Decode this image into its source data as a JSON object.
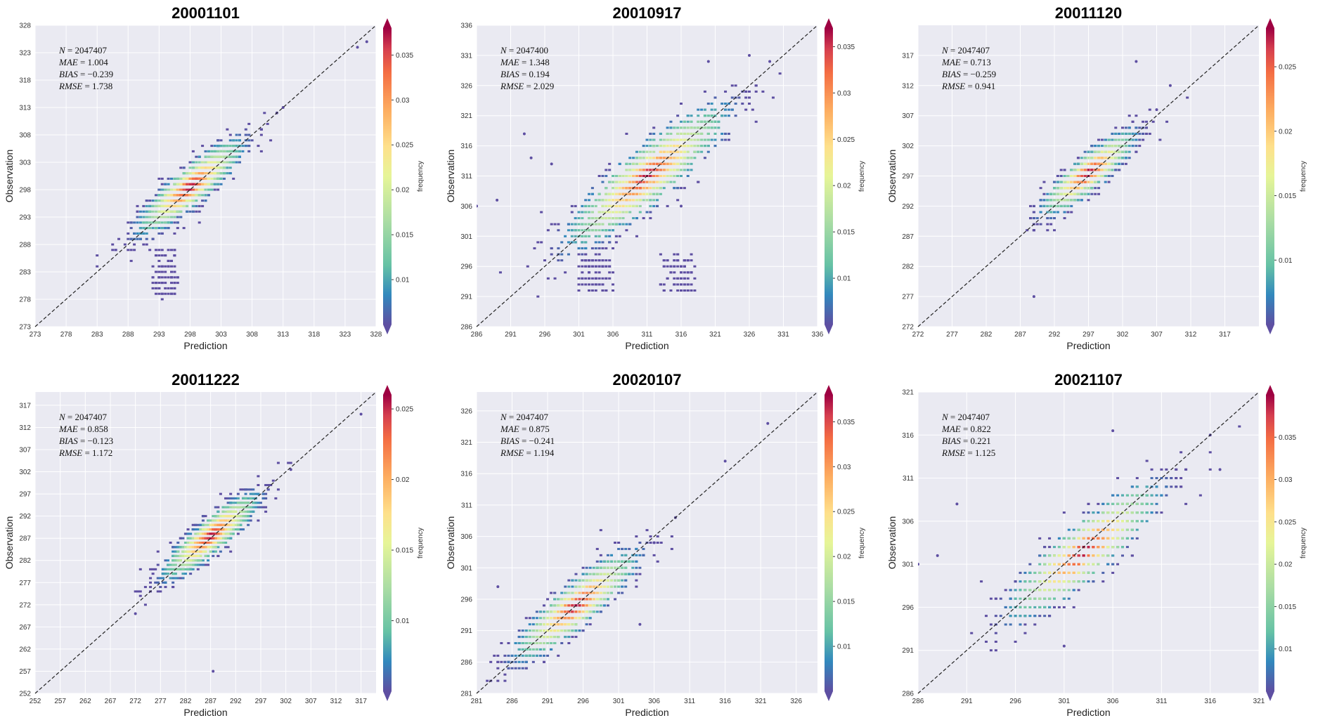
{
  "figure": {
    "xlabel": "Prediction",
    "ylabel": "Observation",
    "colorbar_label": "frequency"
  },
  "chart_data": [
    {
      "type": "scatter",
      "title": "20001101",
      "xlabel": "Prediction",
      "ylabel": "Observation",
      "xlim": [
        273,
        328
      ],
      "ylim": [
        273,
        328
      ],
      "xticks": [
        273,
        278,
        283,
        288,
        293,
        298,
        303,
        308,
        313,
        318,
        323,
        328
      ],
      "yticks": [
        273,
        278,
        283,
        288,
        293,
        298,
        303,
        308,
        313,
        318,
        323,
        328
      ],
      "stats": {
        "N": "2047407",
        "MAE": "1.004",
        "BIAS": "−0.239",
        "RMSE": "1.738"
      },
      "colorbar": {
        "label": "frequency",
        "max": 0.038,
        "ticks": [
          0.01,
          0.015,
          0.02,
          0.025,
          0.03,
          0.035
        ]
      },
      "density": {
        "center": [
          298,
          298.5
        ],
        "spread": 4.0,
        "lower_tail": [
          [
            292,
            296,
            278,
            287
          ]
        ]
      },
      "outliers": [
        [
          325,
          324
        ],
        [
          326.5,
          325
        ],
        [
          312,
          312
        ],
        [
          313,
          313
        ]
      ]
    },
    {
      "type": "scatter",
      "title": "20010917",
      "xlabel": "Prediction",
      "ylabel": "Observation",
      "xlim": [
        286,
        336
      ],
      "ylim": [
        286,
        336
      ],
      "xticks": [
        286,
        291,
        296,
        301,
        306,
        311,
        316,
        321,
        326,
        331,
        336
      ],
      "yticks": [
        286,
        291,
        296,
        301,
        306,
        311,
        316,
        321,
        326,
        331,
        336
      ],
      "stats": {
        "N": "2047400",
        "MAE": "1.348",
        "BIAS": "0.194",
        "RMSE": "2.029"
      },
      "colorbar": {
        "label": "frequency",
        "max": 0.037,
        "ticks": [
          0.01,
          0.015,
          0.02,
          0.025,
          0.03,
          0.035
        ]
      },
      "density": {
        "center": [
          311,
          311
        ],
        "spread": 5.5,
        "lower_tail": [
          [
            301,
            306,
            292,
            298
          ],
          [
            313,
            318,
            292,
            298
          ]
        ]
      },
      "outliers": [
        [
          286,
          306
        ],
        [
          289,
          307
        ],
        [
          293,
          318
        ],
        [
          294,
          314
        ],
        [
          297,
          313
        ],
        [
          329,
          330
        ],
        [
          326,
          331
        ],
        [
          320,
          330
        ],
        [
          316,
          306
        ]
      ]
    },
    {
      "type": "scatter",
      "title": "20011120",
      "xlabel": "Prediction",
      "ylabel": "Observation",
      "xlim": [
        272,
        322
      ],
      "ylim": [
        272,
        322
      ],
      "xticks": [
        272,
        277,
        282,
        287,
        292,
        297,
        302,
        307,
        312,
        317
      ],
      "yticks": [
        272,
        277,
        282,
        287,
        292,
        297,
        302,
        307,
        312,
        317
      ],
      "stats": {
        "N": "2047407",
        "MAE": "0.713",
        "BIAS": "−0.259",
        "RMSE": "0.941"
      },
      "colorbar": {
        "label": "frequency",
        "max": 0.028,
        "ticks": [
          0.01,
          0.015,
          0.02,
          0.025
        ]
      },
      "density": {
        "center": [
          297,
          297.5
        ],
        "spread": 3.2,
        "lower_tail": []
      },
      "outliers": [
        [
          289,
          277
        ],
        [
          304,
          316
        ],
        [
          309,
          312
        ],
        [
          307,
          308
        ]
      ]
    },
    {
      "type": "scatter",
      "title": "20011222",
      "xlabel": "Prediction",
      "ylabel": "Observation",
      "xlim": [
        252,
        320
      ],
      "ylim": [
        252,
        320
      ],
      "xticks": [
        252,
        257,
        262,
        267,
        272,
        277,
        282,
        287,
        292,
        297,
        302,
        307,
        312,
        317
      ],
      "yticks": [
        252,
        257,
        262,
        267,
        272,
        277,
        282,
        287,
        292,
        297,
        302,
        307,
        312,
        317
      ],
      "stats": {
        "N": "2047407",
        "MAE": "0.858",
        "BIAS": "−0.123",
        "RMSE": "1.172"
      },
      "colorbar": {
        "label": "frequency",
        "max": 0.026,
        "ticks": [
          0.01,
          0.015,
          0.02,
          0.025
        ]
      },
      "density": {
        "center": [
          287,
          287.5
        ],
        "spread": 4.5,
        "lower_tail": []
      },
      "outliers": [
        [
          287.5,
          257
        ],
        [
          272,
          270
        ],
        [
          303,
          302.5
        ],
        [
          317,
          315
        ]
      ]
    },
    {
      "type": "scatter",
      "title": "20020107",
      "xlabel": "Prediction",
      "ylabel": "Observation",
      "xlim": [
        281,
        329
      ],
      "ylim": [
        281,
        329
      ],
      "xticks": [
        281,
        286,
        291,
        296,
        301,
        306,
        311,
        316,
        321,
        326
      ],
      "yticks": [
        281,
        286,
        291,
        296,
        301,
        306,
        311,
        316,
        321,
        326
      ],
      "stats": {
        "N": "2047407",
        "MAE": "0.875",
        "BIAS": "−0.241",
        "RMSE": "1.194"
      },
      "colorbar": {
        "label": "frequency",
        "max": 0.038,
        "ticks": [
          0.01,
          0.015,
          0.02,
          0.025,
          0.03,
          0.035
        ]
      },
      "density": {
        "center": [
          295,
          295
        ],
        "spread": 4.0,
        "lower_tail": []
      },
      "outliers": [
        [
          316,
          318
        ],
        [
          322,
          324
        ],
        [
          309,
          309
        ],
        [
          304,
          292
        ],
        [
          284,
          298
        ],
        [
          306,
          305
        ]
      ]
    },
    {
      "type": "scatter",
      "title": "20021107",
      "xlabel": "Prediction",
      "ylabel": "Observation",
      "xlim": [
        286,
        321
      ],
      "ylim": [
        286,
        321
      ],
      "xticks": [
        286,
        291,
        296,
        301,
        306,
        311,
        316,
        321
      ],
      "yticks": [
        286,
        291,
        296,
        301,
        306,
        311,
        316,
        321
      ],
      "stats": {
        "N": "2047407",
        "MAE": "0.822",
        "BIAS": "0.221",
        "RMSE": "1.125"
      },
      "colorbar": {
        "label": "frequency",
        "max": 0.04,
        "ticks": [
          0.01,
          0.015,
          0.02,
          0.025,
          0.03,
          0.035
        ]
      },
      "density": {
        "center": [
          303,
          302.5
        ],
        "spread": 3.6,
        "lower_tail": []
      },
      "outliers": [
        [
          286,
          301
        ],
        [
          288,
          302
        ],
        [
          290,
          308
        ],
        [
          316,
          316
        ],
        [
          317,
          312
        ],
        [
          306,
          316.5
        ],
        [
          301,
          291.5
        ]
      ]
    }
  ]
}
